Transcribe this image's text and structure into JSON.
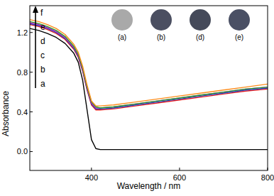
{
  "chart_data": {
    "type": "line",
    "x_label": "Wavelength / nm",
    "y_label": "Absorbance",
    "x": [
      260,
      280,
      300,
      320,
      340,
      360,
      370,
      380,
      390,
      400,
      410,
      420,
      450,
      500,
      550,
      600,
      650,
      700,
      750,
      800
    ],
    "series": [
      {
        "name": "a",
        "color": "#000000",
        "values": [
          1.24,
          1.22,
          1.19,
          1.15,
          1.09,
          0.99,
          0.9,
          0.72,
          0.42,
          0.12,
          0.03,
          0.02,
          0.02,
          0.02,
          0.02,
          0.02,
          0.02,
          0.02,
          0.02,
          0.02
        ]
      },
      {
        "name": "b",
        "color": "#e41a1c",
        "values": [
          1.28,
          1.26,
          1.23,
          1.19,
          1.13,
          1.03,
          0.95,
          0.81,
          0.62,
          0.47,
          0.42,
          0.42,
          0.43,
          0.46,
          0.49,
          0.52,
          0.55,
          0.58,
          0.61,
          0.63
        ]
      },
      {
        "name": "c",
        "color": "#1f3fbf",
        "values": [
          1.29,
          1.27,
          1.24,
          1.2,
          1.14,
          1.04,
          0.96,
          0.82,
          0.63,
          0.48,
          0.43,
          0.43,
          0.44,
          0.47,
          0.5,
          0.53,
          0.56,
          0.59,
          0.62,
          0.64
        ]
      },
      {
        "name": "d",
        "color": "#c020c0",
        "values": [
          1.3,
          1.28,
          1.25,
          1.21,
          1.15,
          1.05,
          0.97,
          0.83,
          0.64,
          0.49,
          0.44,
          0.44,
          0.45,
          0.48,
          0.51,
          0.54,
          0.57,
          0.6,
          0.63,
          0.65
        ]
      },
      {
        "name": "e",
        "color": "#2ca02c",
        "values": [
          1.31,
          1.29,
          1.26,
          1.22,
          1.16,
          1.06,
          0.98,
          0.84,
          0.65,
          0.5,
          0.45,
          0.44,
          0.45,
          0.48,
          0.51,
          0.54,
          0.57,
          0.6,
          0.63,
          0.65
        ]
      },
      {
        "name": "f",
        "color": "#ff8c1a",
        "values": [
          1.33,
          1.31,
          1.28,
          1.24,
          1.18,
          1.08,
          1.0,
          0.86,
          0.67,
          0.51,
          0.46,
          0.46,
          0.47,
          0.5,
          0.53,
          0.56,
          0.59,
          0.62,
          0.65,
          0.68
        ]
      }
    ],
    "xlim": [
      260,
      800
    ],
    "ylim": [
      -0.19,
      1.47
    ],
    "xticks": [
      400,
      600,
      800
    ],
    "yticks": [
      {
        "value": 0,
        "label": "0.0"
      },
      0.4,
      0.8,
      1.2
    ],
    "annotations": [
      "(a)",
      "(b)",
      "(d)",
      "(e)"
    ]
  }
}
